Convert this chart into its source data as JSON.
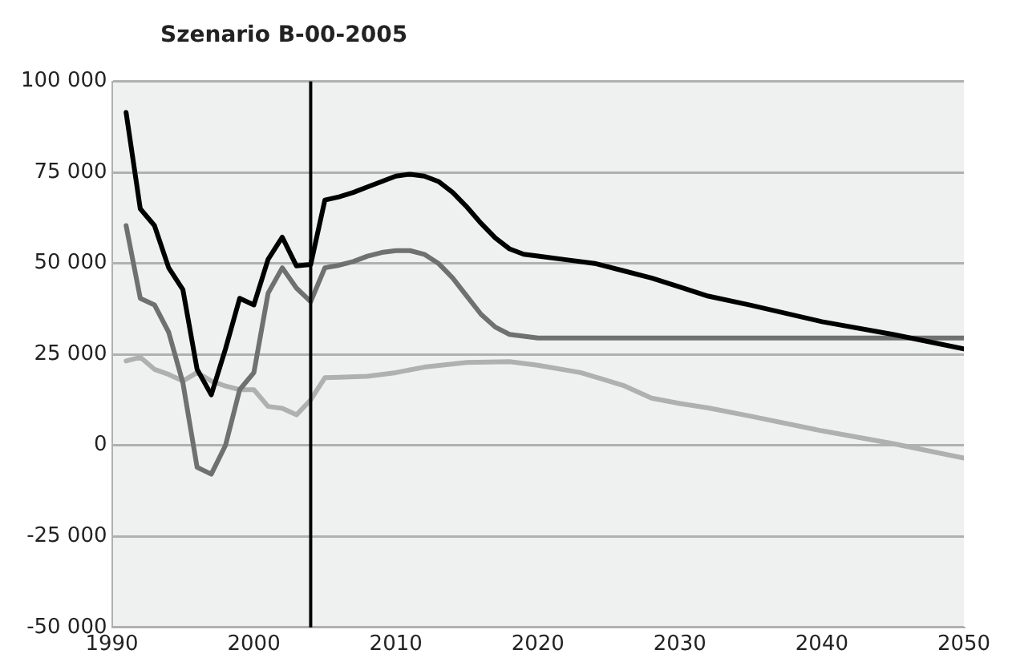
{
  "chart_data": {
    "type": "line",
    "title": "Szenario B-00-2005",
    "xlim": [
      1990,
      2050
    ],
    "xticks": [
      1990,
      2000,
      2010,
      2020,
      2030,
      2040,
      2050
    ],
    "ylim": [
      -50000,
      100000
    ],
    "yticks": [
      {
        "value": -50000,
        "label": "-50 000"
      },
      {
        "value": -25000,
        "label": "-25 000"
      },
      {
        "value": 0,
        "label": "0"
      },
      {
        "value": 25000,
        "label": "25 000"
      },
      {
        "value": 50000,
        "label": "50 000"
      },
      {
        "value": 75000,
        "label": "75 000"
      },
      {
        "value": 100000,
        "label": "100 000"
      }
    ],
    "grid": "y",
    "legend": false,
    "marker": "none",
    "line_style": "solid",
    "ref_lines": [
      {
        "axis": "x",
        "value": 2004,
        "color": "#000000"
      }
    ],
    "series": [
      {
        "color": "#000000",
        "x": [
          1991,
          1992,
          1993,
          1994,
          1995,
          1996,
          1997,
          1998,
          1999,
          2000,
          2001,
          2002,
          2003,
          2004,
          2005,
          2006,
          2007,
          2008,
          2009,
          2010,
          2011,
          2012,
          2013,
          2014,
          2015,
          2016,
          2017,
          2018,
          2019,
          2020,
          2022,
          2024,
          2026,
          2028,
          2030,
          2032,
          2035,
          2040,
          2045,
          2050
        ],
        "values": [
          91500,
          65000,
          60400,
          48800,
          42800,
          20900,
          13900,
          26500,
          40400,
          38600,
          51100,
          57200,
          49300,
          49700,
          67400,
          68300,
          69500,
          71000,
          72500,
          74000,
          74500,
          74000,
          72500,
          69500,
          65500,
          61000,
          57000,
          54000,
          52500,
          52000,
          51000,
          50000,
          48000,
          46000,
          43500,
          41000,
          38500,
          34000,
          30500,
          26500
        ]
      },
      {
        "color": "#707070",
        "x": [
          1991,
          1992,
          1993,
          1994,
          1995,
          1996,
          1997,
          1998,
          1999,
          2000,
          2001,
          2002,
          2003,
          2004,
          2005,
          2006,
          2007,
          2008,
          2009,
          2010,
          2011,
          2012,
          2013,
          2014,
          2015,
          2016,
          2017,
          2018,
          2019,
          2020,
          2030,
          2040,
          2050
        ],
        "values": [
          60400,
          40400,
          38600,
          31100,
          17200,
          -6000,
          -7900,
          0,
          15300,
          20000,
          41800,
          48800,
          43200,
          39500,
          48800,
          49500,
          50500,
          52000,
          53000,
          53500,
          53500,
          52500,
          50000,
          46000,
          41000,
          36000,
          32500,
          30500,
          30000,
          29500,
          29500,
          29500,
          29500
        ]
      },
      {
        "color": "#b0b0b0",
        "x": [
          1991,
          1992,
          1993,
          1994,
          1995,
          1996,
          1997,
          1998,
          1999,
          2000,
          2001,
          2002,
          2003,
          2004,
          2005,
          2006,
          2008,
          2010,
          2012,
          2015,
          2018,
          2020,
          2023,
          2026,
          2028,
          2030,
          2032,
          2035,
          2040,
          2045,
          2050
        ],
        "values": [
          23200,
          24200,
          20900,
          19500,
          17700,
          20000,
          17700,
          16300,
          15300,
          15300,
          10700,
          10200,
          8400,
          12500,
          18600,
          18700,
          19000,
          20000,
          21500,
          22800,
          23000,
          22000,
          20000,
          16500,
          13000,
          11500,
          10300,
          8000,
          4000,
          500,
          -3500
        ]
      }
    ]
  }
}
